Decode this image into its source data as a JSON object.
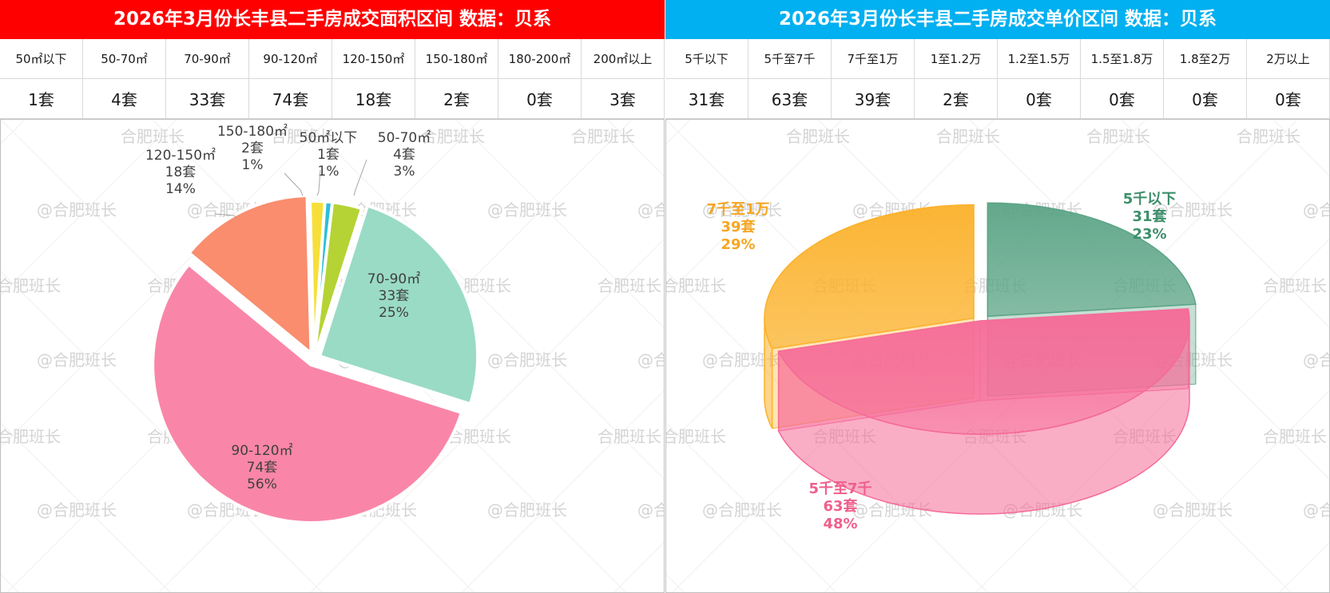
{
  "area_panel": {
    "title": "2026年3月份长丰县二手房成交面积区间  数据：贝系",
    "headers": [
      "50㎡以下",
      "50-70㎡",
      "70-90㎡",
      "90-120㎡",
      "120-150㎡",
      "150-180㎡",
      "180-200㎡",
      "200㎡以上"
    ],
    "values": [
      "1套",
      "4套",
      "33套",
      "74套",
      "18套",
      "2套",
      "0套",
      "3套"
    ]
  },
  "price_panel": {
    "title": "2026年3月份长丰县二手房成交单价区间  数据：贝系",
    "headers": [
      "5千以下",
      "5千至7千",
      "7千至1万",
      "1至1.2万",
      "1.2至1.5万",
      "1.5至1.8万",
      "1.8至2万",
      "2万以上"
    ],
    "values": [
      "31套",
      "63套",
      "39套",
      "2套",
      "0套",
      "0套",
      "0套",
      "0套"
    ]
  },
  "watermark": {
    "line1": "@合肥班长",
    "line2": "合肥班长"
  },
  "chart_data": [
    {
      "type": "pie",
      "title": "",
      "slices": [
        {
          "label": "90-120㎡",
          "count": "74套",
          "value": 74,
          "percent": "56%",
          "color": "#f986a8"
        },
        {
          "label": "120-150㎡",
          "count": "18套",
          "value": 18,
          "percent": "14%",
          "color": "#f98d6e"
        },
        {
          "label": "150-180㎡",
          "count": "2套",
          "value": 2,
          "percent": "1%",
          "color": "#f7df3a"
        },
        {
          "label": "50㎡以下",
          "count": "1套",
          "value": 1,
          "percent": "1%",
          "color": "#2bbfd8"
        },
        {
          "label": "50-70㎡",
          "count": "4套",
          "value": 4,
          "percent": "3%",
          "color": "#b5d334"
        },
        {
          "label": "70-90㎡",
          "count": "33套",
          "value": 33,
          "percent": "25%",
          "color": "#9adbc5"
        }
      ]
    },
    {
      "type": "pie",
      "title": "",
      "style": "3d",
      "slices": [
        {
          "label": "5千以下",
          "count": "31套",
          "value": 31,
          "percent": "23%",
          "color": "#5ba486",
          "label_color": "#3d8f6b"
        },
        {
          "label": "5千至7千",
          "count": "63套",
          "value": 63,
          "percent": "48%",
          "color": "#f56b98",
          "label_color": "#ef5f8c"
        },
        {
          "label": "7千至1万",
          "count": "39套",
          "value": 39,
          "percent": "29%",
          "color": "#fbb12a",
          "label_color": "#f5a623"
        }
      ]
    }
  ]
}
